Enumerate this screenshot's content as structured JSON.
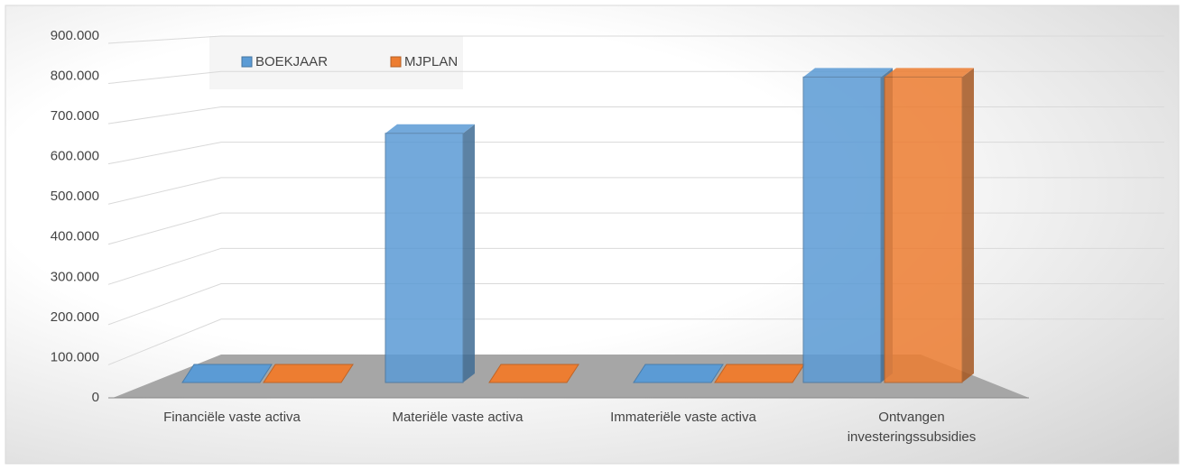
{
  "chart_data": {
    "type": "bar3d",
    "categories": [
      "Financiële vaste activa",
      "Materiële vaste activa",
      "Immateriële vaste activa",
      "Ontvangen investeringssubsidies"
    ],
    "series": [
      {
        "name": "BOEKJAAR",
        "color": "#5b9bd5",
        "values": [
          0,
          620000,
          0,
          760000
        ]
      },
      {
        "name": "MJPLAN",
        "color": "#ed7d31",
        "values": [
          0,
          0,
          0,
          760000
        ]
      }
    ],
    "ylim": [
      0,
      900000
    ],
    "yticks": [
      0,
      {
        "value": 100000,
        "label": "100.000"
      },
      {
        "value": 200000,
        "label": "200.000"
      },
      {
        "value": 300000,
        "label": "300.000"
      },
      {
        "value": 400000,
        "label": "400.000"
      },
      {
        "value": 500000,
        "label": "500.000"
      },
      {
        "value": 600000,
        "label": "600.000"
      },
      {
        "value": 700000,
        "label": "700.000"
      },
      {
        "value": 800000,
        "label": "800.000"
      },
      {
        "value": 900000,
        "label": "900.000"
      }
    ],
    "grid": true,
    "legend": "top-left"
  }
}
